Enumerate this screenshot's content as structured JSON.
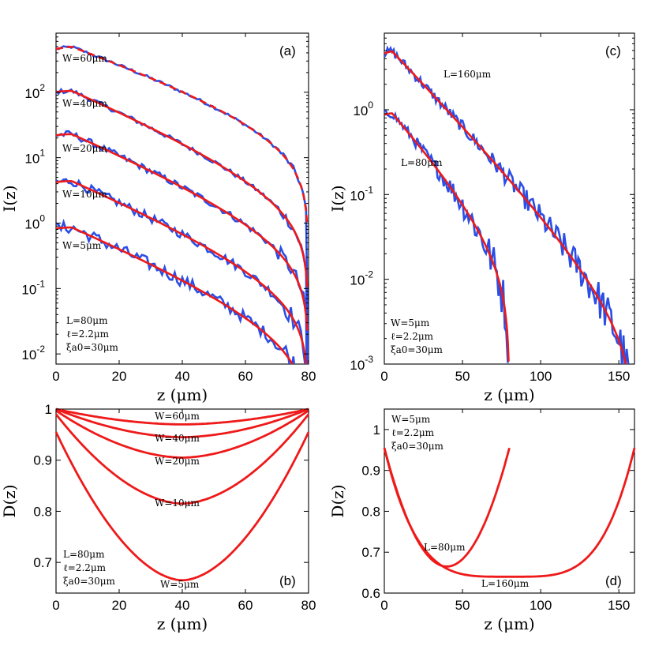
{
  "colors": {
    "measured": "#2a4ee6",
    "model": "#ee1a1a",
    "axis": "#000000"
  },
  "chart_data": [
    {
      "panel": "a",
      "type": "line",
      "panel_label": "(a)",
      "xlabel": "z (μm)",
      "ylabel": "I(z)",
      "xlim": [
        0,
        80
      ],
      "ylim": [
        0.007,
        800
      ],
      "yscale": "log",
      "xticks": [
        0,
        20,
        40,
        60,
        80
      ],
      "yticks": [
        {
          "value": 0.01,
          "base": "10",
          "exp": "-2"
        },
        {
          "value": 0.1,
          "base": "10",
          "exp": "-1"
        },
        {
          "value": 1,
          "base": "10",
          "exp": "0"
        },
        {
          "value": 10,
          "base": "10",
          "exp": "1"
        },
        {
          "value": 100,
          "base": "10",
          "exp": "2"
        }
      ],
      "annotations": [
        "L=80μm",
        "ℓ=2.2μm",
        "ξa0=30μm"
      ],
      "series": [
        {
          "name": "W=60μm",
          "model": {
            "L": 80,
            "A": 520,
            "k": 0.032,
            "z0": 5
          }
        },
        {
          "name": "W=40μm",
          "model": {
            "L": 80,
            "A": 110,
            "k": 0.04,
            "z0": 5
          }
        },
        {
          "name": "W=20μm",
          "model": {
            "L": 80,
            "A": 24,
            "k": 0.04,
            "z0": 5
          }
        },
        {
          "name": "W=10μm",
          "model": {
            "L": 80,
            "A": 4.6,
            "k": 0.04,
            "z0": 5
          }
        },
        {
          "name": "W=5μm",
          "model": {
            "L": 80,
            "A": 0.9,
            "k": 0.04,
            "z0": 5
          }
        }
      ]
    },
    {
      "panel": "c",
      "type": "line",
      "panel_label": "(c)",
      "xlabel": "z (μm)",
      "ylabel": "I(z)",
      "xlim": [
        0,
        160
      ],
      "ylim": [
        0.001,
        8
      ],
      "yscale": "log",
      "xticks": [
        0,
        50,
        100,
        150
      ],
      "yticks": [
        {
          "value": 0.001,
          "base": "10",
          "exp": "-3"
        },
        {
          "value": 0.01,
          "base": "10",
          "exp": "-2"
        },
        {
          "value": 0.1,
          "base": "10",
          "exp": "-1"
        },
        {
          "value": 1,
          "base": "10",
          "exp": "0"
        }
      ],
      "annotations": [
        "W=5μm",
        "ℓ=2.2μm",
        "ξa0=30μm"
      ],
      "series": [
        {
          "name": "L=160μm",
          "model": {
            "L": 160,
            "A": 5.0,
            "k": 0.04,
            "z0": 5
          }
        },
        {
          "name": "L=80μm",
          "model": {
            "L": 80,
            "A": 0.95,
            "k": 0.04,
            "z0": 5
          }
        }
      ]
    },
    {
      "panel": "b",
      "type": "line",
      "panel_label": "(b)",
      "xlabel": "z (μm)",
      "ylabel": "D(z)",
      "xlim": [
        0,
        80
      ],
      "ylim": [
        0.64,
        1.0
      ],
      "xticks": [
        0,
        20,
        40,
        60,
        80
      ],
      "yticks": [
        0.7,
        0.8,
        0.9,
        1
      ],
      "annotations": [
        "L=80μm",
        "ℓ=2.2μm",
        "ξa0=30μm"
      ],
      "series": [
        {
          "name": "W=60μm",
          "edge": 1.0,
          "min": 0.97
        },
        {
          "name": "W=40μm",
          "edge": 1.0,
          "min": 0.945
        },
        {
          "name": "W=20μm",
          "edge": 0.997,
          "min": 0.905
        },
        {
          "name": "W=10μm",
          "edge": 0.99,
          "min": 0.815
        },
        {
          "name": "W=5μm",
          "edge": 0.955,
          "min": 0.665
        }
      ]
    },
    {
      "panel": "d",
      "type": "line",
      "panel_label": "(d)",
      "xlabel": "z (μm)",
      "ylabel": "D(z)",
      "xlim": [
        0,
        160
      ],
      "ylim": [
        0.6,
        1.05
      ],
      "xticks": [
        0,
        50,
        100,
        150
      ],
      "yticks": [
        0.6,
        0.7,
        0.8,
        0.9,
        1
      ],
      "annotations": [
        "W=5μm",
        "ℓ=2.2μm",
        "ξa0=30μm"
      ],
      "series": [
        {
          "name": "L=80μm",
          "L": 80,
          "edge": 0.955,
          "min": 0.665
        },
        {
          "name": "L=160μm",
          "L": 160,
          "edge": 0.955,
          "min": 0.64
        }
      ]
    }
  ]
}
